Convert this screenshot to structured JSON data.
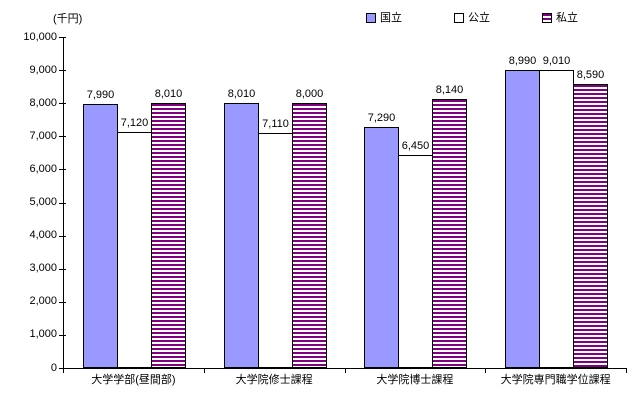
{
  "chart_data": {
    "type": "bar",
    "title": "",
    "unit_label": "(千円)",
    "xlabel": "",
    "ylabel": "(千円)",
    "categories": [
      "大学学部(昼間部)",
      "大学院修士課程",
      "大学院博士課程",
      "大学院専門職学位課程"
    ],
    "series": [
      {
        "name": "国立",
        "values": [
          7990,
          8010,
          7290,
          8990
        ],
        "color": "#9999ff",
        "pattern": "solid"
      },
      {
        "name": "公立",
        "values": [
          7120,
          7110,
          6450,
          9010
        ],
        "color": "#ffffff",
        "pattern": "solid"
      },
      {
        "name": "私立",
        "values": [
          8010,
          8000,
          8140,
          8590
        ],
        "color": "#800080",
        "pattern": "hstripe"
      }
    ],
    "data_labels": [
      "7,990",
      "7,120",
      "8,010",
      "8,010",
      "7,110",
      "8,000",
      "7,290",
      "6,450",
      "8,140",
      "8,990",
      "9,010",
      "8,590"
    ],
    "ylim": [
      0,
      10000
    ],
    "ytick_step": 1000,
    "ytick_labels": [
      "0",
      "1,000",
      "2,000",
      "3,000",
      "4,000",
      "5,000",
      "6,000",
      "7,000",
      "8,000",
      "9,000",
      "10,000"
    ],
    "grid": false,
    "legend_position": "top-right",
    "bar_border_color": "#000000"
  }
}
